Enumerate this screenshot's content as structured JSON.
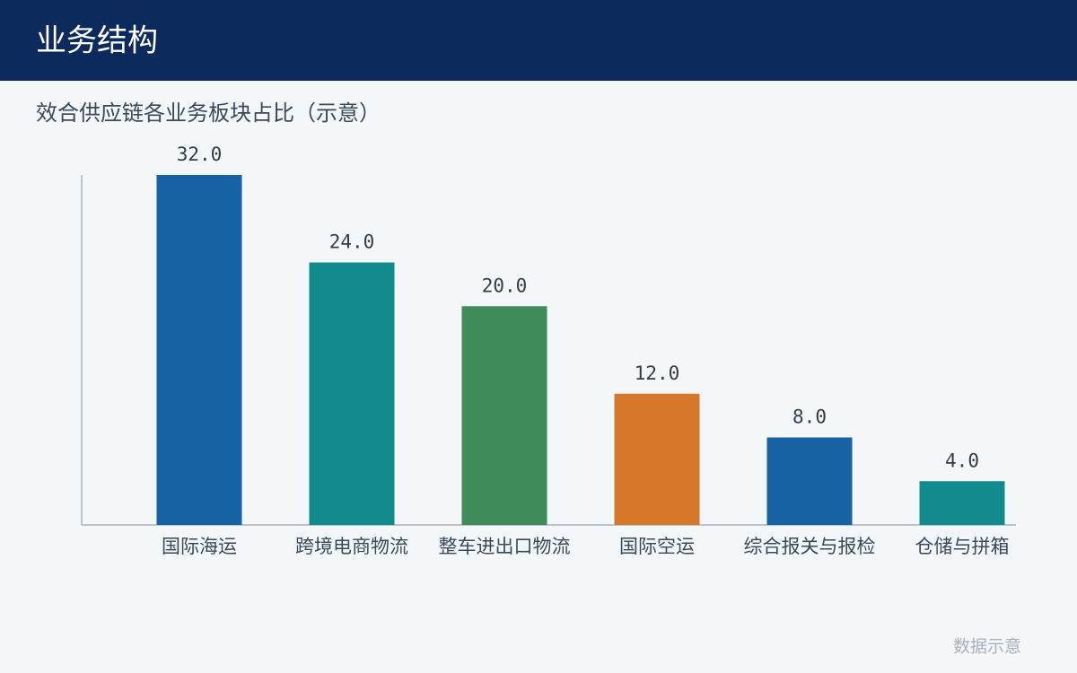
{
  "header": {
    "title": "业务结构"
  },
  "chart_data": {
    "type": "bar",
    "title": "效合供应链各业务板块占比（示意）",
    "categories": [
      "国际海运",
      "跨境电商物流",
      "整车进出口物流",
      "国际空运",
      "综合报关与报检",
      "仓储与拼箱"
    ],
    "values": [
      32,
      24,
      20,
      12,
      8,
      4
    ],
    "value_labels": [
      "32.0",
      "24.0",
      "20.0",
      "12.0",
      "8.0",
      "4.0"
    ],
    "colors": [
      "#1762a5",
      "#118b8e",
      "#3d8c5a",
      "#d6782a",
      "#1762a5",
      "#118b8e"
    ],
    "ylim": [
      0,
      32
    ]
  },
  "footer": {
    "note": "数据示意"
  }
}
